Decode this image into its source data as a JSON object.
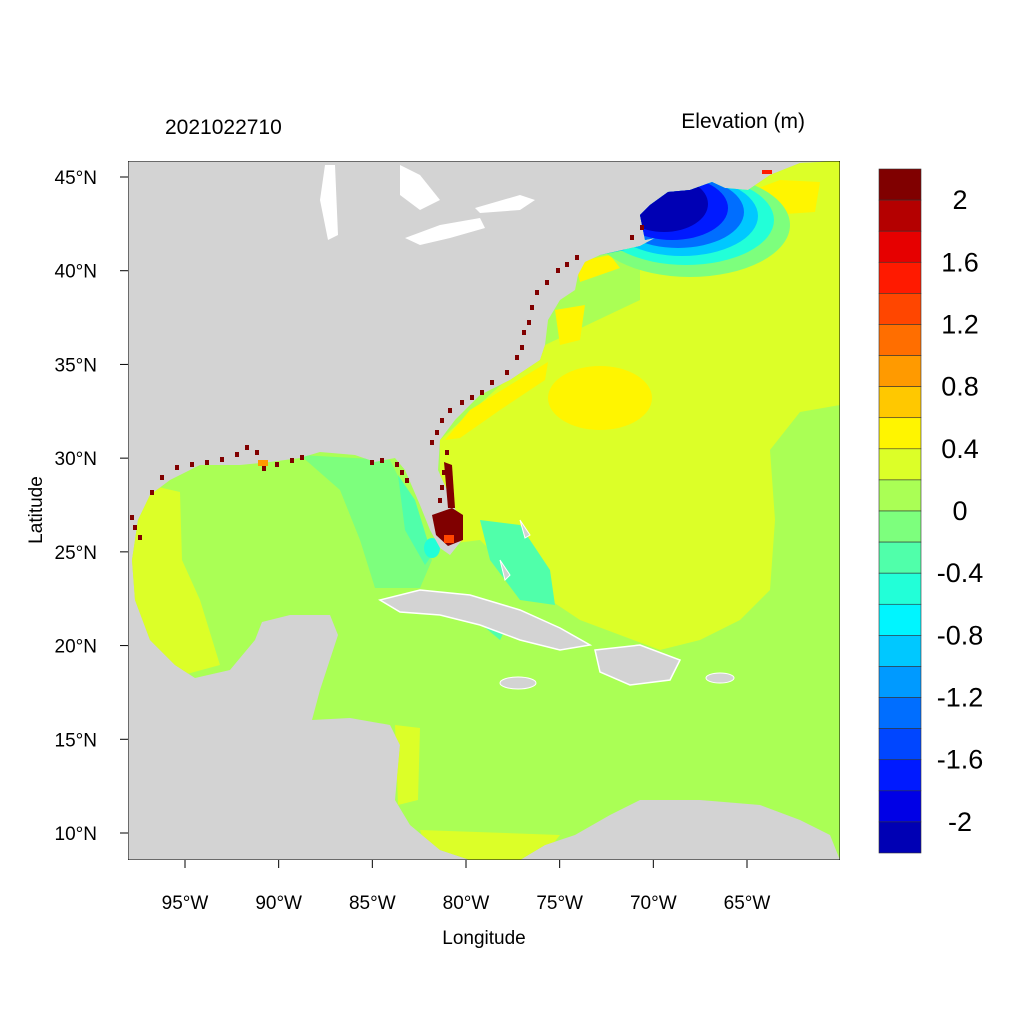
{
  "chart_data": {
    "type": "heatmap",
    "title_left": "2021022710",
    "title_right": "Elevation (m)",
    "xlabel": "Longitude",
    "ylabel": "Latitude",
    "xlim": [
      -98,
      -60
    ],
    "ylim": [
      8.6,
      45.9
    ],
    "x_ticks": [
      {
        "value": -95,
        "label": "95°W"
      },
      {
        "value": -90,
        "label": "90°W"
      },
      {
        "value": -85,
        "label": "85°W"
      },
      {
        "value": -80,
        "label": "80°W"
      },
      {
        "value": -75,
        "label": "75°W"
      },
      {
        "value": -70,
        "label": "70°W"
      },
      {
        "value": -65,
        "label": "65°W"
      }
    ],
    "y_ticks": [
      {
        "value": 45,
        "label": "45°N"
      },
      {
        "value": 40,
        "label": "40°N"
      },
      {
        "value": 35,
        "label": "35°N"
      },
      {
        "value": 30,
        "label": "30°N"
      },
      {
        "value": 25,
        "label": "25°N"
      },
      {
        "value": 20,
        "label": "20°N"
      },
      {
        "value": 15,
        "label": "15°N"
      },
      {
        "value": 10,
        "label": "10°N"
      }
    ],
    "land_color": "#d3d3d3",
    "colorbar": {
      "colors": [
        "#800000",
        "#b40000",
        "#e60000",
        "#ff1a00",
        "#ff4600",
        "#ff6e00",
        "#ff9a00",
        "#ffc800",
        "#fff500",
        "#dcff28",
        "#aaff55",
        "#7dff7d",
        "#50ffaa",
        "#22ffd8",
        "#00f5ff",
        "#00c8ff",
        "#009aff",
        "#006eff",
        "#0046ff",
        "#001aff",
        "#0000e6",
        "#0000b4"
      ],
      "labels": [
        {
          "value": 2,
          "label": "2"
        },
        {
          "value": 1.6,
          "label": "1.6"
        },
        {
          "value": 1.2,
          "label": "1.2"
        },
        {
          "value": 0.8,
          "label": "0.8"
        },
        {
          "value": 0.4,
          "label": "0.4"
        },
        {
          "value": 0,
          "label": "0"
        },
        {
          "value": -0.4,
          "label": "-0.4"
        },
        {
          "value": -0.8,
          "label": "-0.8"
        },
        {
          "value": -1.2,
          "label": "-1.2"
        },
        {
          "value": -1.6,
          "label": "-1.6"
        },
        {
          "value": -2,
          "label": "-2"
        }
      ]
    }
  }
}
